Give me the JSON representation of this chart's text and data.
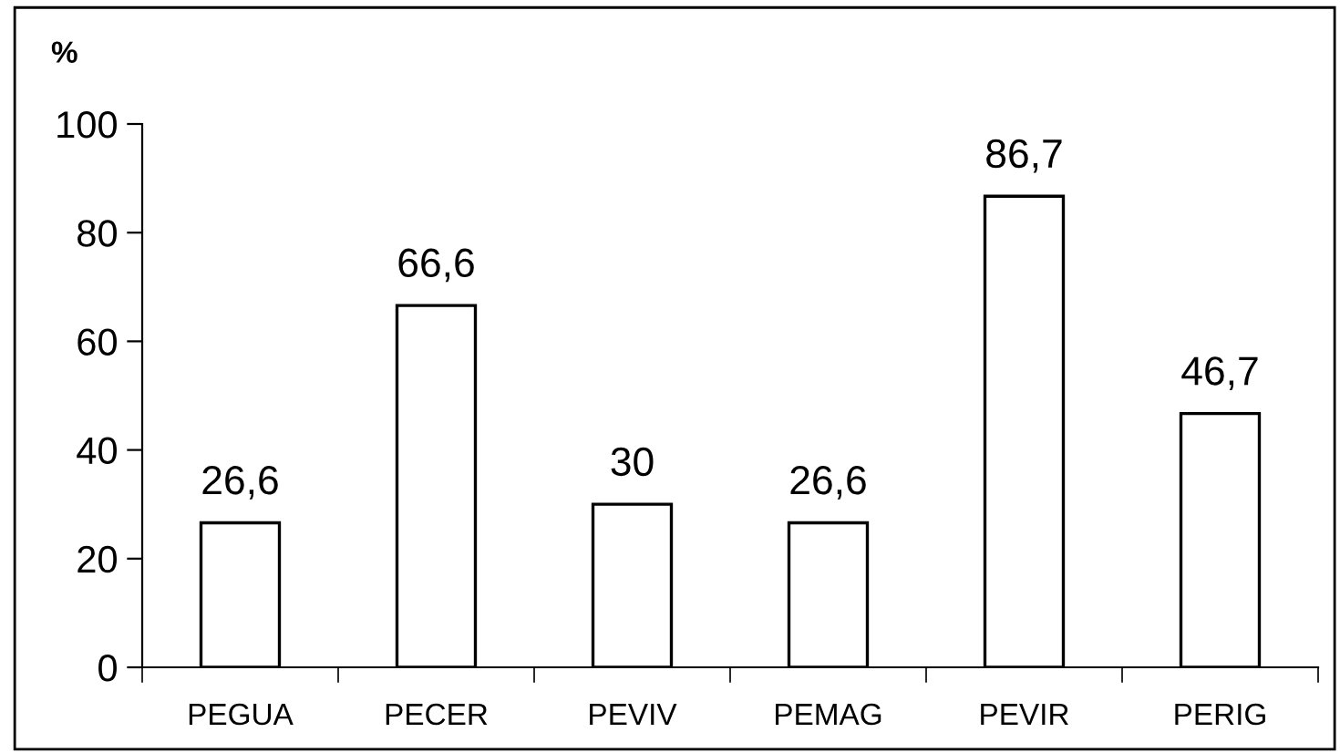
{
  "chart_data": {
    "type": "bar",
    "ylabel": "%",
    "categories": [
      "PEGUA",
      "PECER",
      "PEVIV",
      "PEMAG",
      "PEVIR",
      "PERIG"
    ],
    "values": [
      26.6,
      66.6,
      30,
      26.6,
      86.7,
      46.7
    ],
    "value_labels": [
      "26,6",
      "66,6",
      "30",
      "26,6",
      "86,7",
      "46,7"
    ],
    "color": "#ffffff",
    "ylim": [
      0,
      100
    ],
    "yticks": [
      0,
      20,
      40,
      60,
      80,
      100
    ],
    "grid": false,
    "legend": false
  }
}
